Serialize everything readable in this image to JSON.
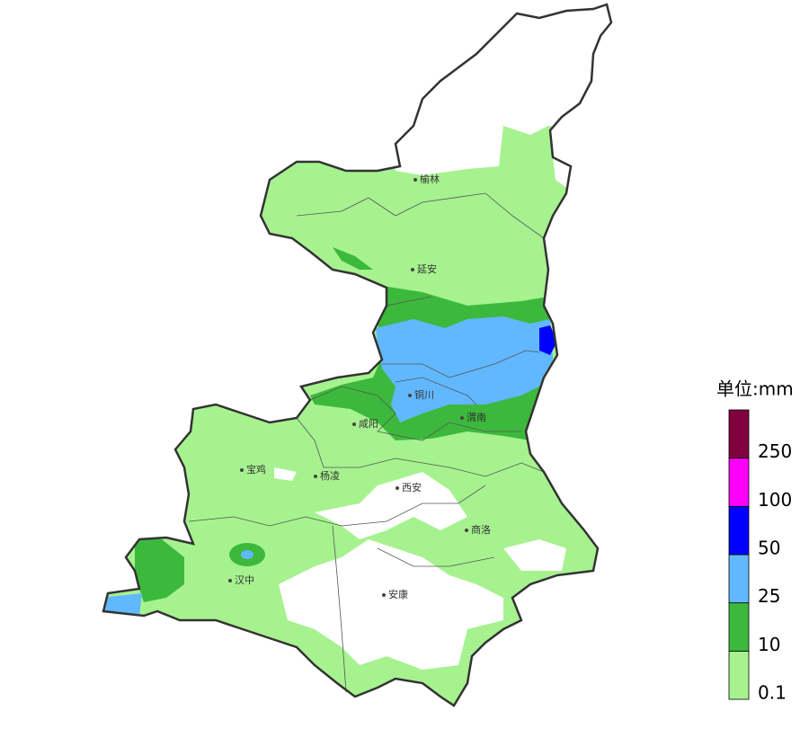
{
  "cities": [
    {
      "name": "榆林"
    },
    {
      "name": "延安"
    },
    {
      "name": "铜川"
    },
    {
      "name": "渭南"
    },
    {
      "name": "咸阳"
    },
    {
      "name": "宝鸡"
    },
    {
      "name": "杨凌"
    },
    {
      "name": "西安"
    },
    {
      "name": "商洛"
    },
    {
      "name": "汉中"
    },
    {
      "name": "安康"
    }
  ],
  "legend": {
    "title": "单位:mm",
    "levels": [
      {
        "label": 0.1,
        "color": "#a6f28f"
      },
      {
        "label": 10,
        "color": "#3cb93c"
      },
      {
        "label": 25,
        "color": "#61b8ff"
      },
      {
        "label": 50,
        "color": "#0000fe"
      },
      {
        "label": 100,
        "color": "#fa00fa"
      },
      {
        "label": 250,
        "color": "#800040"
      }
    ]
  }
}
